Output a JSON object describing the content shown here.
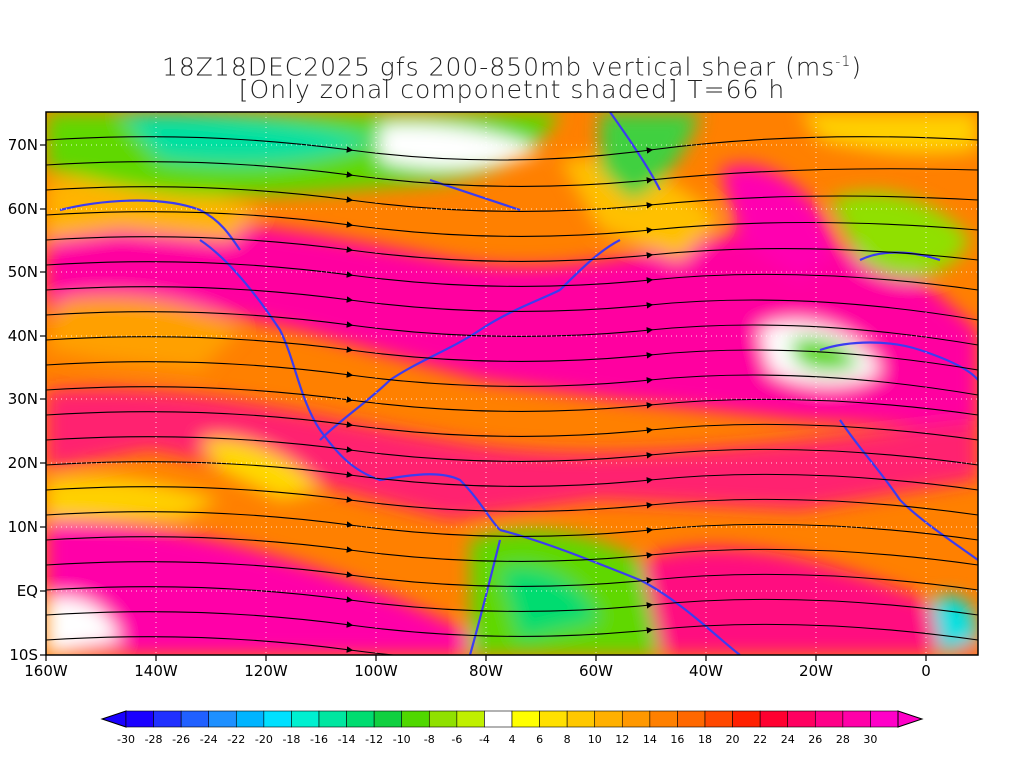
{
  "title": {
    "line1_text": "18Z18DEC2025 gfs 200-850mb vertical shear (ms",
    "line1_sup": "-1",
    "line1_end": ")",
    "line2": "[Only zonal componetnt shaded] T=66 h"
  },
  "axes": {
    "lat_labels": [
      "70N",
      "60N",
      "50N",
      "40N",
      "30N",
      "20N",
      "10N",
      "EQ",
      "10S"
    ],
    "lon_labels": [
      "160W",
      "140W",
      "120W",
      "100W",
      "80W",
      "60W",
      "40W",
      "20W",
      "0"
    ]
  },
  "colorbar": {
    "labels": [
      "-30",
      "-28",
      "-26",
      "-24",
      "-22",
      "-20",
      "-18",
      "-16",
      "-14",
      "-12",
      "-10",
      "-8",
      "-6",
      "-4",
      "4",
      "6",
      "8",
      "10",
      "12",
      "14",
      "16",
      "18",
      "20",
      "22",
      "24",
      "26",
      "28",
      "30"
    ],
    "colors": [
      "#1a00ff",
      "#2030ff",
      "#2060ff",
      "#1e90ff",
      "#00b4ff",
      "#00e0ff",
      "#00f0d0",
      "#00e6a0",
      "#00dc70",
      "#10d040",
      "#50d800",
      "#90e000",
      "#c0f000",
      "#ffffff",
      "#ffff00",
      "#ffe000",
      "#ffc800",
      "#ffb000",
      "#ff9800",
      "#ff8000",
      "#ff6800",
      "#ff4800",
      "#ff2000",
      "#ff0030",
      "#ff0060",
      "#ff0088",
      "#ff00a8",
      "#ff00c8"
    ]
  },
  "legend_colors": {
    "coastline": "#3c3cf0",
    "terrain_contour": "#9b30d0",
    "streamline": "#000000"
  }
}
